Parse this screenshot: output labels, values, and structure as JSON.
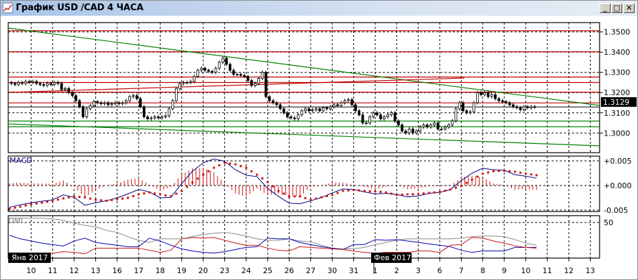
{
  "window": {
    "title": "График USD /CAD  4 ЧАСА",
    "buttons": {
      "minimize": "_",
      "maximize": "□",
      "close": "✕"
    }
  },
  "colors": {
    "bull": "#ffffff",
    "bear": "#000000",
    "level_red": "#c00000",
    "trend_green": "#008000",
    "macd_line": "#000080",
    "macd_signal": "#d01010",
    "dmi_plus": "#0000b0",
    "dmi_minus": "#d01010",
    "adx": "#888888"
  },
  "chart_data": [
    {
      "type": "candlestick",
      "name": "USD/CAD 4H",
      "price_axis": {
        "ticks": [
          "1.3500",
          "1.3400",
          "1.3300",
          "1.3200",
          "1.3100",
          "1.3000"
        ],
        "ylim": [
          1.2925,
          1.3565
        ]
      },
      "last_price": "1.3129",
      "horizontal_levels_red": [
        1.3506,
        1.3402,
        1.3277,
        1.325,
        1.3202,
        1.3149
      ],
      "horizontal_levels_green": [
        1.3059,
        1.3031
      ],
      "closes": [
        1.3245,
        1.324,
        1.325,
        1.3245,
        1.3255,
        1.325,
        1.3255,
        1.3245,
        1.324,
        1.3235,
        1.3245,
        1.324,
        1.325,
        1.3245,
        1.3215,
        1.322,
        1.32,
        1.3185,
        1.316,
        1.313,
        1.308,
        1.312,
        1.3135,
        1.3155,
        1.315,
        1.3145,
        1.315,
        1.314,
        1.3145,
        1.315,
        1.3145,
        1.315,
        1.316,
        1.318,
        1.3185,
        1.317,
        1.313,
        1.308,
        1.307,
        1.3075,
        1.308,
        1.3075,
        1.308,
        1.3085,
        1.312,
        1.316,
        1.322,
        1.3245,
        1.325,
        1.325,
        1.3255,
        1.328,
        1.331,
        1.332,
        1.331,
        1.3305,
        1.33,
        1.332,
        1.335,
        1.337,
        1.334,
        1.331,
        1.329,
        1.329,
        1.3285,
        1.328,
        1.326,
        1.3235,
        1.3245,
        1.327,
        1.33,
        1.318,
        1.316,
        1.315,
        1.314,
        1.312,
        1.31,
        1.308,
        1.3075,
        1.307,
        1.309,
        1.311,
        1.312,
        1.311,
        1.3115,
        1.312,
        1.311,
        1.3125,
        1.312,
        1.313,
        1.314,
        1.3135,
        1.315,
        1.316,
        1.3165,
        1.314,
        1.311,
        1.309,
        1.305,
        1.305,
        1.308,
        1.31,
        1.309,
        1.307,
        1.308,
        1.309,
        1.31,
        1.306,
        1.304,
        1.301,
        1.3,
        1.302,
        1.3,
        1.301,
        1.303,
        1.304,
        1.303,
        1.304,
        1.305,
        1.302,
        1.302,
        1.303,
        1.304,
        1.306,
        1.312,
        1.315,
        1.311,
        1.31,
        1.3105,
        1.315,
        1.32,
        1.319,
        1.32,
        1.318,
        1.319,
        1.317,
        1.316,
        1.3155,
        1.315,
        1.314,
        1.313,
        1.3125,
        1.3115,
        1.313,
        1.3125,
        1.313,
        1.3129
      ]
    },
    {
      "type": "line",
      "name": "MACD",
      "label": "MACD",
      "y_ticks": [
        "+0.005",
        "+0.000",
        "-0.005"
      ],
      "ylim": [
        -0.0055,
        0.006
      ],
      "macd": [
        -0.0044,
        -0.0039,
        -0.0035,
        -0.0032,
        -0.0029,
        -0.0019,
        -0.0024,
        -0.004,
        -0.0035,
        -0.0031,
        -0.0025,
        -0.0017,
        -0.0008,
        -0.0013,
        -0.0025,
        -0.0024,
        0.0004,
        0.0029,
        0.0046,
        0.0054,
        0.0049,
        0.0032,
        0.0021,
        0.0018,
        -0.0006,
        -0.0022,
        -0.0036,
        -0.0037,
        -0.0031,
        -0.0024,
        -0.0015,
        -0.0007,
        -0.0008,
        -0.0013,
        -0.0017,
        -0.0016,
        -0.0018,
        -0.0023,
        -0.0021,
        -0.0016,
        -0.0014,
        -0.0008,
        0.001,
        0.0025,
        0.0035,
        0.0032,
        0.0031,
        0.0022,
        0.0019,
        0.0015
      ],
      "signal": [
        -0.0047,
        -0.0043,
        -0.0038,
        -0.0035,
        -0.0031,
        -0.0026,
        -0.0022,
        -0.0024,
        -0.0029,
        -0.0031,
        -0.0028,
        -0.0025,
        -0.0018,
        -0.0014,
        -0.0018,
        -0.0022,
        -0.0011,
        0.0006,
        0.0022,
        0.0036,
        0.0046,
        0.0043,
        0.0036,
        0.0022,
        0.0007,
        -0.0011,
        -0.0022,
        -0.0022,
        -0.0029,
        -0.0024,
        -0.0019,
        -0.0011,
        -0.0009,
        -0.0011,
        -0.0012,
        -0.0014,
        -0.0019,
        -0.0018,
        -0.0017,
        -0.0015,
        -0.0013,
        -0.0008,
        -0.0001,
        0.0012,
        0.0024,
        0.0029,
        0.003,
        0.0028,
        0.0024,
        0.0021
      ]
    },
    {
      "type": "line",
      "name": "DMI",
      "label": "DMI",
      "y_ticks": [
        "50"
      ],
      "ylim": [
        0,
        60
      ],
      "adx": [
        56,
        56,
        56,
        56,
        55,
        53,
        49,
        46,
        44,
        39,
        36,
        30,
        25,
        22,
        27,
        27,
        27,
        30,
        33,
        35,
        36,
        34,
        31,
        27,
        25,
        25,
        27,
        24,
        23,
        18,
        14,
        13,
        13,
        15,
        19,
        22,
        25,
        27,
        27,
        27,
        27,
        27,
        28,
        30,
        31,
        31,
        30,
        26,
        21,
        18
      ],
      "plus_di": [
        32,
        27,
        24,
        21,
        19,
        17,
        24,
        28,
        22,
        20,
        18,
        16,
        16,
        28,
        24,
        18,
        13,
        10,
        8,
        7,
        9,
        12,
        15,
        16,
        28,
        27,
        27,
        22,
        19,
        16,
        14,
        12,
        19,
        19,
        26,
        25,
        26,
        24,
        22,
        20,
        18,
        16,
        11,
        8,
        10,
        10,
        10,
        15,
        15,
        15
      ],
      "minus_di": [
        6,
        6,
        6,
        6,
        7,
        9,
        8,
        6,
        14,
        14,
        14,
        14,
        14,
        11,
        8,
        11,
        27,
        29,
        28,
        29,
        25,
        21,
        18,
        18,
        14,
        11,
        10,
        16,
        15,
        14,
        13,
        12,
        10,
        8,
        7,
        8,
        8,
        8,
        10,
        10,
        8,
        18,
        19,
        29,
        28,
        24,
        21,
        17,
        15,
        14
      ]
    }
  ],
  "time_axis": {
    "day_labels": [
      "10",
      "11",
      "12",
      "13",
      "16",
      "17",
      "18",
      "19",
      "20",
      "23",
      "24",
      "25",
      "26",
      "27",
      "30",
      "31",
      "1",
      "2",
      "3",
      "6",
      "7",
      "8",
      "9",
      "10",
      "11",
      "12",
      "13"
    ],
    "month_labels": [
      {
        "text": "Янв 2017"
      },
      {
        "text": "Фев 2017"
      }
    ]
  }
}
